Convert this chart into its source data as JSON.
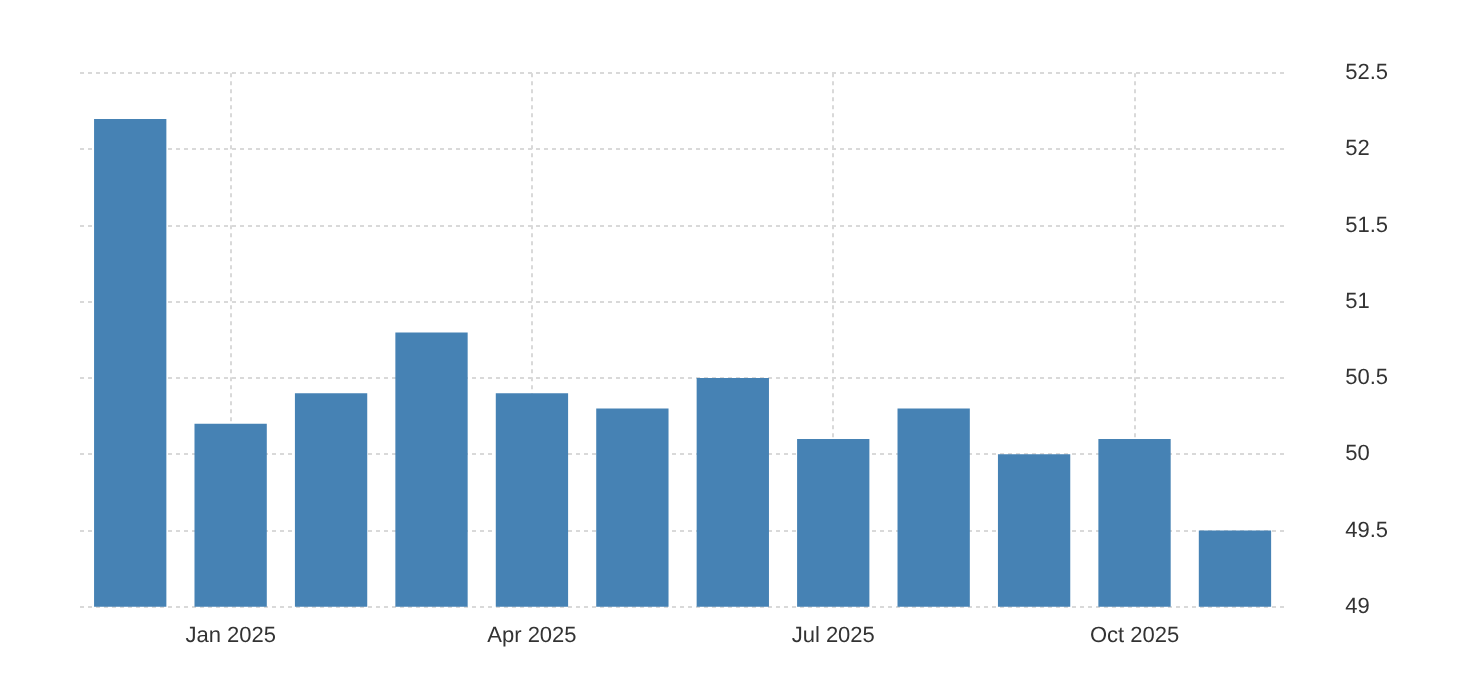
{
  "chart_data": {
    "type": "bar",
    "categories": [
      null,
      "Jan 2025",
      null,
      null,
      "Apr 2025",
      null,
      null,
      "Jul 2025",
      null,
      null,
      "Oct 2025",
      null
    ],
    "values": [
      52.2,
      50.2,
      50.4,
      50.8,
      50.4,
      50.3,
      50.5,
      50.1,
      50.3,
      50.0,
      50.1,
      49.5
    ],
    "color": "#4682b4",
    "ylim": [
      49,
      52.5
    ],
    "yticks": [
      49,
      49.5,
      50,
      50.5,
      51,
      51.5,
      52,
      52.5
    ],
    "grid": true
  }
}
